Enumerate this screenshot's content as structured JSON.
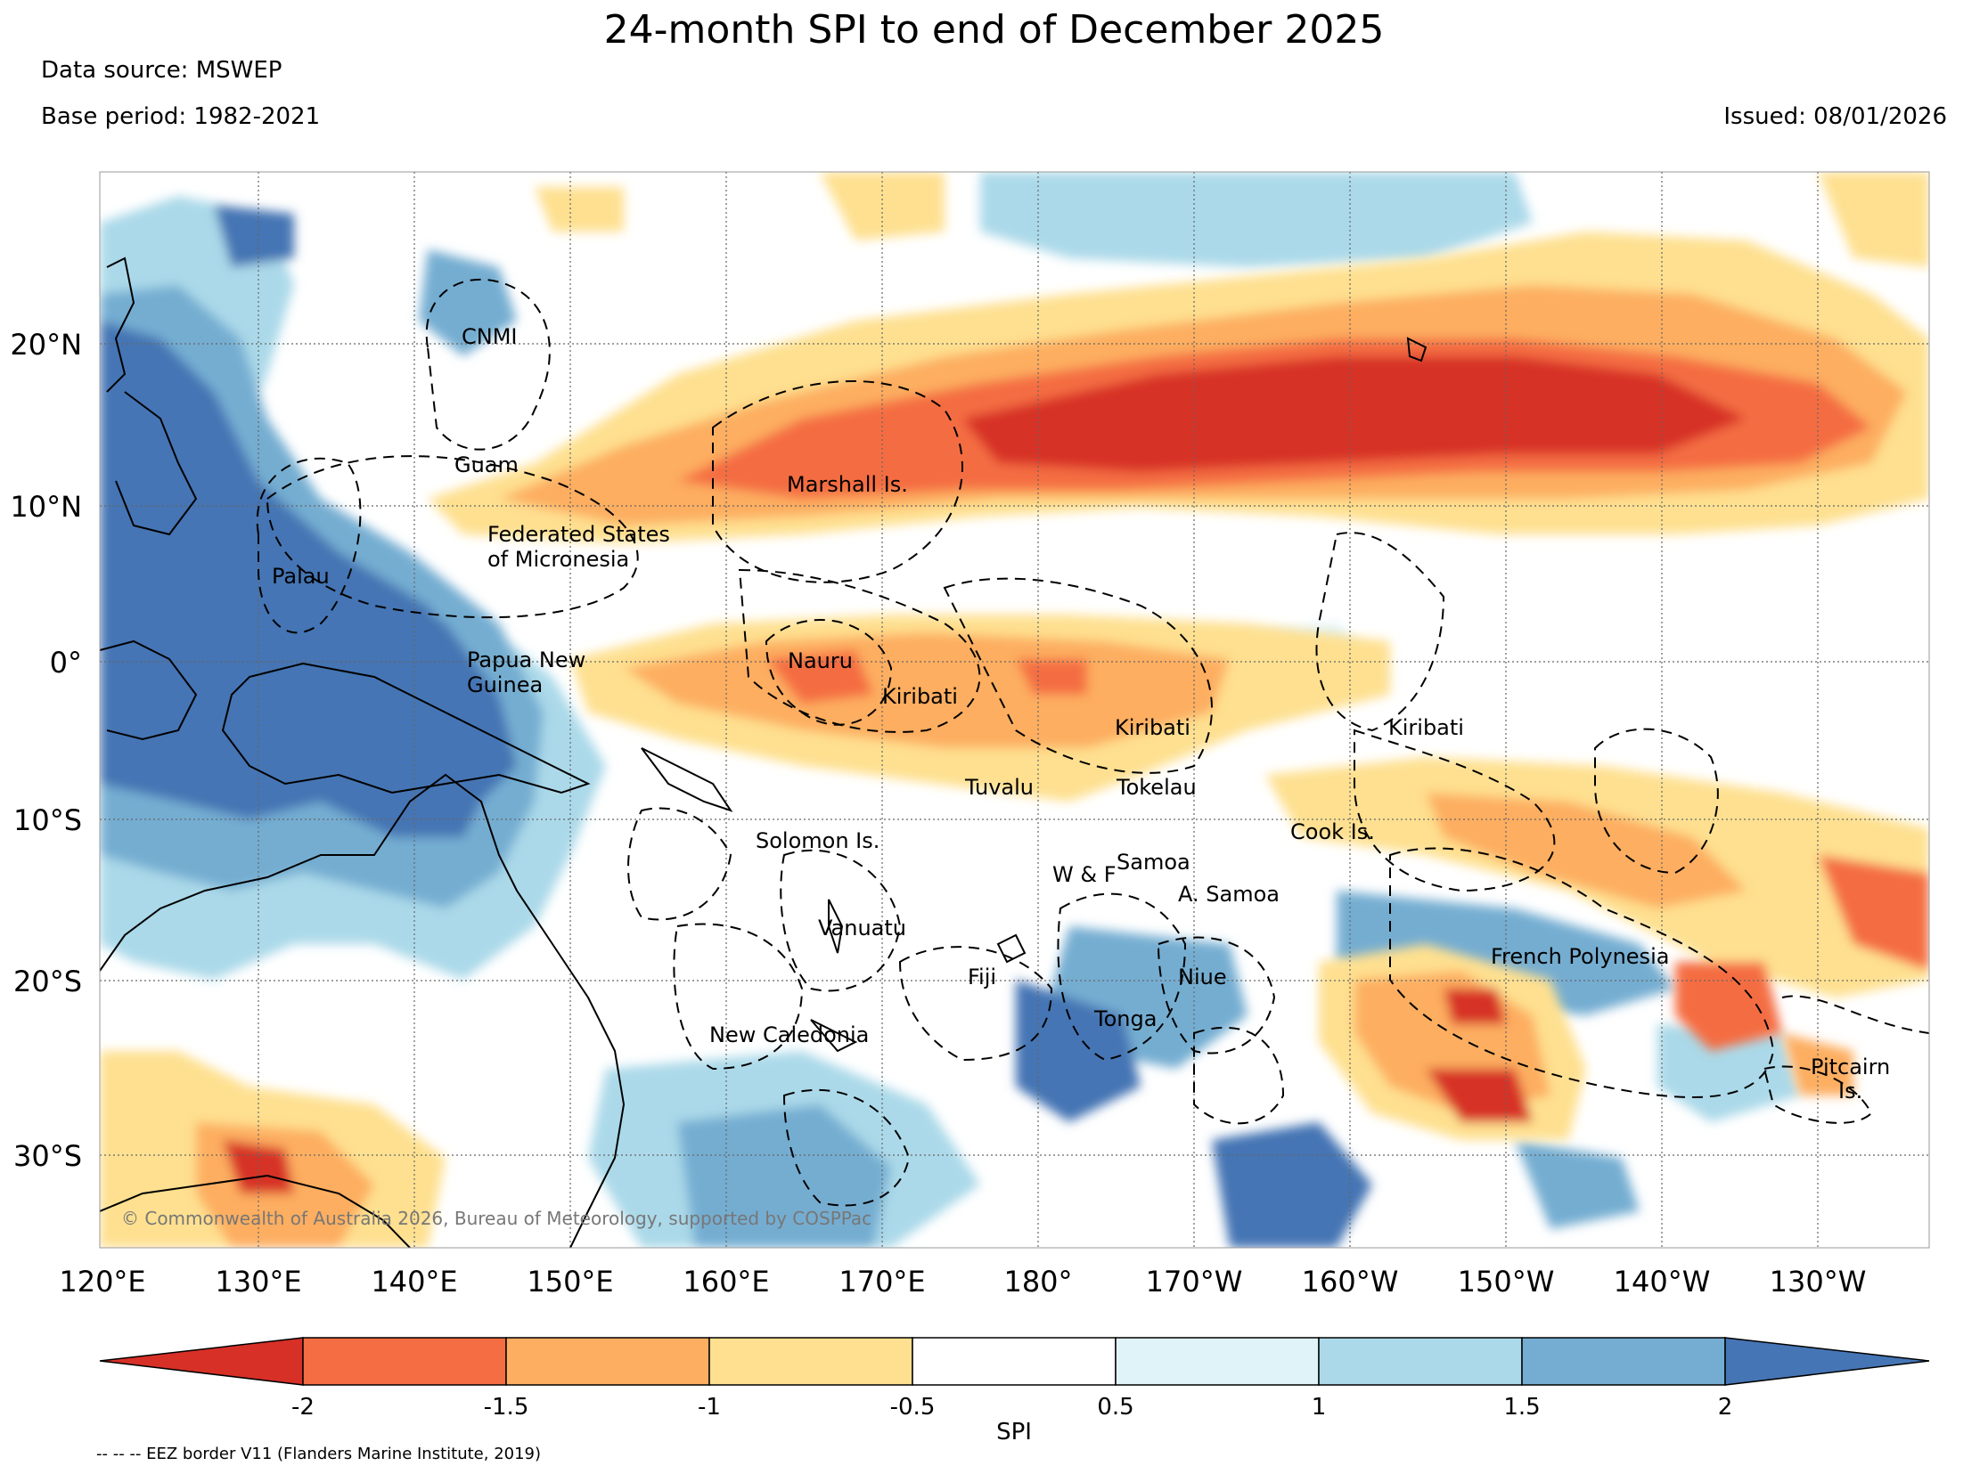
{
  "header": {
    "title": "24-month SPI to end of December 2025",
    "data_source": "Data source: MSWEP",
    "base_period": "Base period: 1982-2021",
    "issued": "Issued: 08/01/2026"
  },
  "map": {
    "lat_labels": [
      "20°N",
      "10°N",
      "0°",
      "10°S",
      "20°S",
      "30°S"
    ],
    "lon_labels": [
      "120°E",
      "130°E",
      "140°E",
      "150°E",
      "160°E",
      "170°E",
      "180°",
      "170°W",
      "160°W",
      "150°W",
      "140°W",
      "130°W"
    ],
    "copyright": "© Commonwealth of Australia 2026, Bureau of Meteorology, supported by COSPPac",
    "regions": [
      {
        "name": "CNMI"
      },
      {
        "name": "Guam"
      },
      {
        "name": "Marshall Is."
      },
      {
        "name": "Federated States"
      },
      {
        "name": "of Micronesia"
      },
      {
        "name": "Palau"
      },
      {
        "name": "Papua New"
      },
      {
        "name": "Guinea"
      },
      {
        "name": "Nauru"
      },
      {
        "name": "Kiribati"
      },
      {
        "name": "Kiribati"
      },
      {
        "name": "Kiribati"
      },
      {
        "name": "Tuvalu"
      },
      {
        "name": "Tokelau"
      },
      {
        "name": "Cook Is."
      },
      {
        "name": "Solomon Is."
      },
      {
        "name": "Samoa"
      },
      {
        "name": "W & F"
      },
      {
        "name": "A. Samoa"
      },
      {
        "name": "Vanuatu"
      },
      {
        "name": "Fiji"
      },
      {
        "name": "Niue"
      },
      {
        "name": "Tonga"
      },
      {
        "name": "French Polynesia"
      },
      {
        "name": "New Caledonia"
      },
      {
        "name": "Pitcairn"
      },
      {
        "name": "Is."
      }
    ]
  },
  "colorbar": {
    "label": "SPI",
    "ticks": [
      "-2",
      "-1.5",
      "-1",
      "-0.5",
      "0.5",
      "1",
      "1.5",
      "2"
    ],
    "colors": [
      "#d73027",
      "#f46d43",
      "#fdae61",
      "#fee090",
      "#ffffff",
      "#e0f3f8",
      "#abd9e9",
      "#74add1",
      "#4575b4"
    ]
  },
  "footnote": "-- -- -- EEZ border V11 (Flanders Marine Institute, 2019)"
}
